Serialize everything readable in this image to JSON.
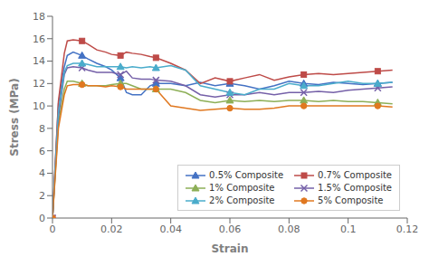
{
  "chart_data": {
    "type": "line",
    "xlabel": "Strain",
    "ylabel": "Stress (MPa)",
    "xlim": [
      0,
      0.12
    ],
    "ylim": [
      0,
      18
    ],
    "xticks": [
      0,
      0.02,
      0.04,
      0.06,
      0.08,
      0.1,
      0.12
    ],
    "yticks": [
      0,
      2,
      4,
      6,
      8,
      10,
      12,
      14,
      16,
      18
    ],
    "grid": false,
    "legend": "lower right",
    "x": [
      0,
      0.002,
      0.004,
      0.005,
      0.007,
      0.01,
      0.012,
      0.015,
      0.018,
      0.02,
      0.023,
      0.025,
      0.027,
      0.03,
      0.033,
      0.035,
      0.04,
      0.045,
      0.05,
      0.055,
      0.06,
      0.065,
      0.07,
      0.075,
      0.08,
      0.085,
      0.09,
      0.095,
      0.1,
      0.105,
      0.11,
      0.115
    ],
    "series": [
      {
        "name": "0.5% Composite",
        "color": "#4472C4",
        "marker": "triangle",
        "values": [
          0.0,
          10.2,
          13.5,
          14.5,
          14.8,
          14.5,
          14.2,
          13.8,
          13.5,
          13.2,
          12.5,
          11.2,
          11.0,
          11.0,
          11.8,
          12.0,
          12.0,
          11.8,
          12.1,
          11.8,
          12.0,
          11.8,
          11.5,
          11.8,
          12.2,
          12.0,
          11.9,
          12.1,
          12.0,
          11.9,
          12.0,
          12.1
        ]
      },
      {
        "name": "0.7% Composite",
        "color": "#BE4B48",
        "marker": "square",
        "values": [
          0.0,
          10.4,
          14.7,
          15.8,
          15.9,
          15.8,
          15.5,
          15.0,
          14.8,
          14.6,
          14.5,
          14.8,
          14.7,
          14.6,
          14.4,
          14.3,
          13.8,
          13.2,
          12.0,
          12.5,
          12.2,
          12.5,
          12.8,
          12.3,
          12.6,
          12.8,
          12.9,
          12.8,
          12.9,
          13.0,
          13.1,
          13.2
        ]
      },
      {
        "name": "1% Composite",
        "color": "#8DAF57",
        "marker": "triangle",
        "values": [
          0.0,
          8.5,
          11.5,
          12.2,
          12.2,
          12.0,
          11.8,
          11.8,
          11.8,
          11.9,
          12.0,
          12.0,
          11.8,
          11.5,
          11.5,
          11.5,
          11.5,
          11.2,
          10.5,
          10.3,
          10.5,
          10.4,
          10.5,
          10.4,
          10.5,
          10.5,
          10.4,
          10.5,
          10.4,
          10.4,
          10.3,
          10.2
        ]
      },
      {
        "name": "1.5% Composite",
        "color": "#7560A8",
        "marker": "x",
        "values": [
          0.0,
          9.0,
          12.8,
          13.4,
          13.5,
          13.4,
          13.2,
          13.0,
          13.0,
          13.0,
          12.8,
          13.1,
          12.5,
          12.4,
          12.4,
          12.3,
          12.2,
          11.8,
          11.0,
          10.8,
          11.0,
          11.0,
          11.2,
          11.0,
          11.2,
          11.2,
          11.3,
          11.2,
          11.4,
          11.5,
          11.6,
          11.7
        ]
      },
      {
        "name": "2% Composite",
        "color": "#4AACCB",
        "marker": "triangle",
        "values": [
          0.0,
          9.5,
          13.0,
          13.6,
          13.8,
          13.8,
          13.7,
          13.5,
          13.5,
          13.5,
          13.5,
          13.4,
          13.5,
          13.4,
          13.5,
          13.4,
          13.6,
          13.2,
          11.8,
          11.5,
          11.2,
          11.0,
          11.5,
          11.5,
          12.0,
          11.8,
          11.8,
          12.0,
          12.2,
          12.0,
          12.0,
          12.1
        ]
      },
      {
        "name": "5% Composite",
        "color": "#E07820",
        "marker": "circle",
        "values": [
          0.0,
          8.0,
          11.0,
          11.8,
          11.9,
          11.9,
          11.8,
          11.8,
          11.7,
          11.8,
          11.7,
          11.5,
          11.5,
          11.5,
          11.5,
          11.5,
          10.0,
          9.8,
          9.6,
          9.7,
          9.8,
          9.7,
          9.7,
          9.8,
          10.0,
          10.0,
          10.0,
          10.0,
          10.0,
          10.0,
          10.0,
          9.9
        ]
      }
    ]
  }
}
